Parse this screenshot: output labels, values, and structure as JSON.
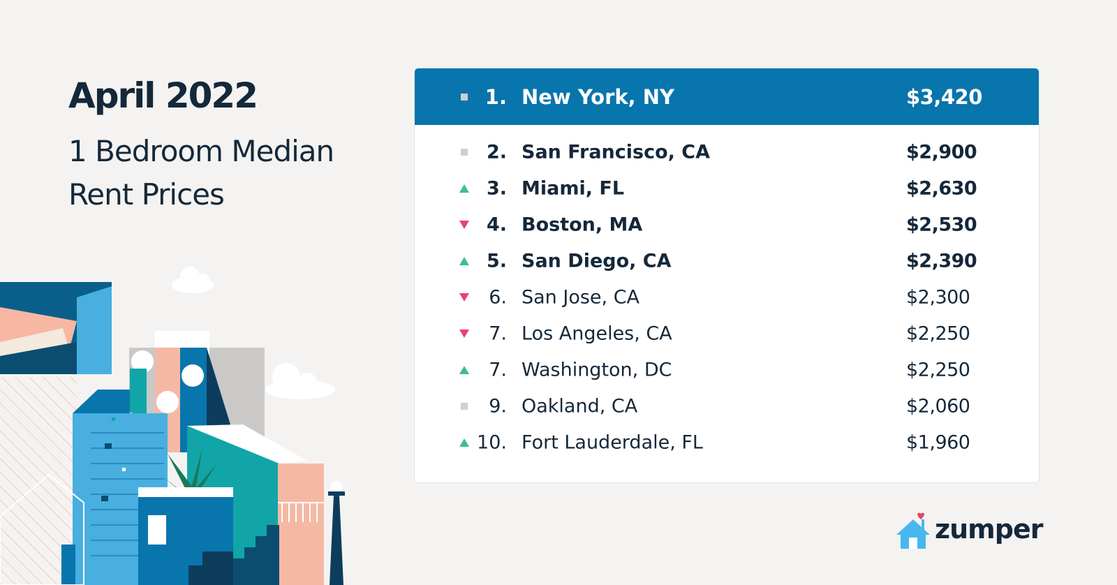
{
  "heading": {
    "title": "April 2022",
    "subtitle": "1 Bedroom Median Rent Prices"
  },
  "colors": {
    "accent": "#0875ad",
    "up": "#3fbf8a",
    "down": "#e8436b",
    "same": "#cfcfcf",
    "text": "#15283a"
  },
  "rankings": [
    {
      "trend": "same",
      "rank": "1.",
      "city": "New York, NY",
      "price": "$3,420"
    },
    {
      "trend": "same",
      "rank": "2.",
      "city": "San Francisco, CA",
      "price": "$2,900"
    },
    {
      "trend": "up",
      "rank": "3.",
      "city": "Miami, FL",
      "price": "$2,630"
    },
    {
      "trend": "down",
      "rank": "4.",
      "city": "Boston, MA",
      "price": "$2,530"
    },
    {
      "trend": "up",
      "rank": "5.",
      "city": "San Diego, CA",
      "price": "$2,390"
    },
    {
      "trend": "down",
      "rank": "6.",
      "city": "San Jose, CA",
      "price": "$2,300"
    },
    {
      "trend": "down",
      "rank": "7.",
      "city": "Los Angeles, CA",
      "price": "$2,250"
    },
    {
      "trend": "up",
      "rank": "7.",
      "city": "Washington, DC",
      "price": "$2,250"
    },
    {
      "trend": "same",
      "rank": "9.",
      "city": "Oakland, CA",
      "price": "$2,060"
    },
    {
      "trend": "up",
      "rank": "10.",
      "city": "Fort Lauderdale, FL",
      "price": "$1,960"
    }
  ],
  "brand": {
    "name": "zumper",
    "icon": "house-heart-icon"
  }
}
